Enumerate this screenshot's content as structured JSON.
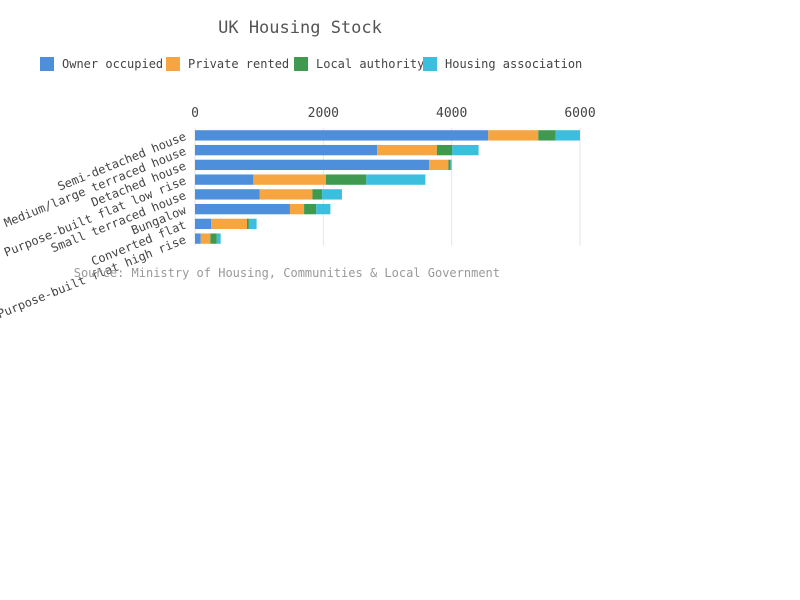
{
  "chart_data": {
    "type": "bar",
    "orientation": "horizontal",
    "stacked": true,
    "title": "UK Housing Stock",
    "source": "Source: Ministry of Housing, Communities & Local Government",
    "categories": [
      "Semi-detached house",
      "Medium/large terraced house",
      "Detached house",
      "Purpose-built flat low rise",
      "Small terraced house",
      "Bungalow",
      "Converted flat",
      "Purpose-built flat high rise"
    ],
    "series": [
      {
        "name": "Owner occupied",
        "color": "#4e8fdc",
        "values": [
          4570,
          2840,
          3650,
          910,
          1010,
          1480,
          250,
          90
        ]
      },
      {
        "name": "Private rented",
        "color": "#f7a540",
        "values": [
          780,
          930,
          300,
          1130,
          820,
          220,
          560,
          150
        ]
      },
      {
        "name": "Local authority",
        "color": "#3f9a50",
        "values": [
          270,
          240,
          30,
          630,
          150,
          190,
          30,
          100
        ]
      },
      {
        "name": "Housing association",
        "color": "#3cbfde",
        "values": [
          380,
          410,
          20,
          920,
          310,
          220,
          120,
          60
        ]
      }
    ],
    "xlim": [
      0,
      6000
    ],
    "xticks": [
      0,
      2000,
      4000,
      6000
    ],
    "grid": true,
    "legend": "top-left",
    "axis_position": "top"
  }
}
